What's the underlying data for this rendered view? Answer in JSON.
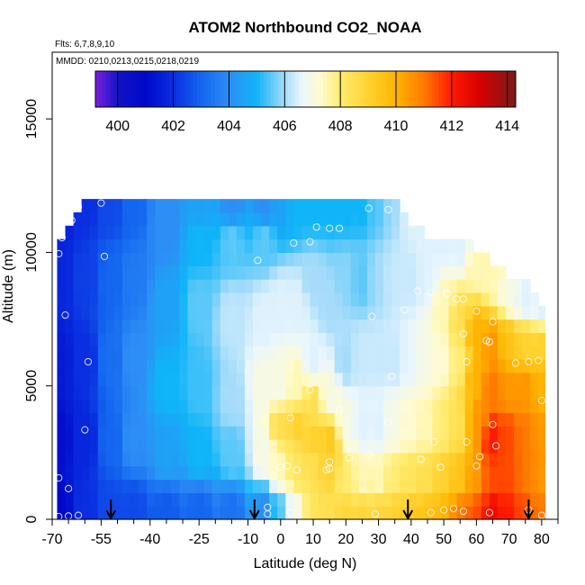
{
  "chart_data": {
    "type": "heatmap",
    "title": "ATOM2 Northbound CO2_NOAA",
    "subtitle_flights": "Flts: 6,7,8,9,10",
    "subtitle_dates": "MMDD: 0210,0213,0215,0218,0219",
    "xlabel": "Latitude (deg N)",
    "ylabel": "Altitude (m)",
    "xlim": [
      -70,
      85
    ],
    "ylim": [
      0,
      17500
    ],
    "x_ticks": [
      -70,
      -55,
      -40,
      -25,
      -10,
      0,
      10,
      20,
      30,
      40,
      50,
      60,
      70,
      80
    ],
    "x_tick_labels": [
      "-70",
      "-55",
      "-40",
      "-25",
      "-10",
      "0",
      "10",
      "20",
      "30",
      "40",
      "50",
      "60",
      "70",
      "80"
    ],
    "x_minor_ticks": [
      -65,
      -60,
      -50,
      -45,
      -35,
      -30,
      -20,
      -15,
      -5,
      5,
      15,
      25,
      35,
      45,
      55,
      65,
      75,
      85
    ],
    "y_ticks": [
      0,
      5000,
      10000,
      15000
    ],
    "y_tick_labels": [
      "0",
      "5000",
      "10000",
      "15000"
    ],
    "colorbar": {
      "range": [
        399.2,
        414.3
      ],
      "ticks": [
        400,
        402,
        404,
        406,
        408,
        410,
        412,
        414
      ],
      "tick_labels": [
        "400",
        "402",
        "404",
        "406",
        "408",
        "410",
        "412",
        "414"
      ],
      "colors": [
        {
          "value": 399.2,
          "color": "#7a1fe0"
        },
        {
          "value": 400.0,
          "color": "#1414c8"
        },
        {
          "value": 401.0,
          "color": "#0008c8"
        },
        {
          "value": 402.0,
          "color": "#0a2ee0"
        },
        {
          "value": 403.0,
          "color": "#1466f0"
        },
        {
          "value": 404.0,
          "color": "#2d8ef5"
        },
        {
          "value": 405.0,
          "color": "#10b4f8"
        },
        {
          "value": 406.0,
          "color": "#a6dcfa"
        },
        {
          "value": 406.6,
          "color": "#eaf6fd"
        },
        {
          "value": 407.3,
          "color": "#fffbd0"
        },
        {
          "value": 408.0,
          "color": "#ffec70"
        },
        {
          "value": 409.0,
          "color": "#ffd230"
        },
        {
          "value": 410.0,
          "color": "#ffb400"
        },
        {
          "value": 411.0,
          "color": "#ff7a00"
        },
        {
          "value": 412.0,
          "color": "#ff1a00"
        },
        {
          "value": 413.0,
          "color": "#d80000"
        },
        {
          "value": 414.3,
          "color": "#7a1a1a"
        }
      ]
    },
    "grid": {
      "lat_start": -68.5,
      "lat_end": 81.0,
      "lat_step": 2.5,
      "alt_start": 0,
      "alt_step": 500,
      "column_tops_m": [
        {
          "lat_max": -65,
          "top": 10500
        },
        {
          "lat_max": -63,
          "top": 11000
        },
        {
          "lat_max": -60,
          "top": 11500
        },
        {
          "lat_max": 37,
          "top": 12000
        },
        {
          "lat_max": 40,
          "top": 11500
        },
        {
          "lat_max": 45,
          "top": 11000
        },
        {
          "lat_max": 58,
          "top": 10500
        },
        {
          "lat_max": 63,
          "top": 10000
        },
        {
          "lat_max": 69,
          "top": 9500
        },
        {
          "lat_max": 76,
          "top": 9000
        },
        {
          "lat_max": 79,
          "top": 8500
        },
        {
          "lat_max": 99,
          "top": 8000
        }
      ]
    },
    "series": [
      {
        "name": "CO2 field anchors (lat, alt m, ppm)",
        "points": [
          [
            -68,
            200,
            401.0
          ],
          [
            -68,
            3000,
            401.2
          ],
          [
            -68,
            6000,
            401.5
          ],
          [
            -68,
            9000,
            401.8
          ],
          [
            -68,
            11500,
            401.5
          ],
          [
            -60,
            200,
            402.0
          ],
          [
            -60,
            3000,
            401.8
          ],
          [
            -60,
            6000,
            402.0
          ],
          [
            -60,
            9000,
            402.3
          ],
          [
            -60,
            11800,
            402.0
          ],
          [
            -52,
            300,
            402.5
          ],
          [
            -52,
            3000,
            403.0
          ],
          [
            -52,
            6000,
            403.2
          ],
          [
            -52,
            9000,
            403.0
          ],
          [
            -52,
            11800,
            402.5
          ],
          [
            -45,
            200,
            402.5
          ],
          [
            -45,
            3000,
            404.0
          ],
          [
            -45,
            6000,
            404.0
          ],
          [
            -45,
            9000,
            403.5
          ],
          [
            -45,
            11800,
            403.0
          ],
          [
            -35,
            200,
            402.8
          ],
          [
            -35,
            2500,
            404.5
          ],
          [
            -35,
            5000,
            405.0
          ],
          [
            -35,
            8000,
            404.5
          ],
          [
            -35,
            11000,
            404.0
          ],
          [
            -35,
            11800,
            404.0
          ],
          [
            -25,
            200,
            403.0
          ],
          [
            -25,
            2500,
            405.0
          ],
          [
            -25,
            5000,
            405.3
          ],
          [
            -25,
            8000,
            405.5
          ],
          [
            -25,
            10500,
            405.0
          ],
          [
            -25,
            11800,
            404.5
          ],
          [
            -15,
            200,
            403.3
          ],
          [
            -15,
            2500,
            405.5
          ],
          [
            -15,
            4500,
            406.0
          ],
          [
            -15,
            7500,
            406.2
          ],
          [
            -15,
            10500,
            405.5
          ],
          [
            -15,
            11800,
            404.0
          ],
          [
            -5,
            200,
            404.0
          ],
          [
            -5,
            2500,
            407.0
          ],
          [
            -5,
            5000,
            407.0
          ],
          [
            -5,
            7500,
            406.5
          ],
          [
            -5,
            10500,
            405.5
          ],
          [
            -5,
            11800,
            404.0
          ],
          [
            0,
            200,
            405.5
          ],
          [
            0,
            2000,
            407.5
          ],
          [
            0,
            3500,
            408.5
          ],
          [
            0,
            5000,
            407.0
          ],
          [
            0,
            8000,
            406.5
          ],
          [
            0,
            11800,
            404.5
          ],
          [
            5,
            200,
            407.0
          ],
          [
            5,
            2000,
            408.3
          ],
          [
            5,
            3500,
            409.0
          ],
          [
            5,
            5000,
            407.5
          ],
          [
            5,
            8000,
            406.5
          ],
          [
            5,
            11800,
            405.0
          ],
          [
            10,
            200,
            408.3
          ],
          [
            10,
            2000,
            408.5
          ],
          [
            10,
            3000,
            409.0
          ],
          [
            10,
            4300,
            408.5
          ],
          [
            10,
            6000,
            406.5
          ],
          [
            10,
            9000,
            406.0
          ],
          [
            10,
            11800,
            405.0
          ],
          [
            15,
            200,
            408.5
          ],
          [
            15,
            2000,
            409.0
          ],
          [
            15,
            3000,
            409.3
          ],
          [
            15,
            4500,
            407.0
          ],
          [
            15,
            8000,
            406.0
          ],
          [
            15,
            11800,
            405.0
          ],
          [
            20,
            200,
            408.8
          ],
          [
            20,
            1500,
            408.0
          ],
          [
            20,
            3500,
            407.0
          ],
          [
            20,
            6000,
            406.0
          ],
          [
            20,
            9000,
            405.8
          ],
          [
            20,
            11800,
            405.0
          ],
          [
            25,
            200,
            408.8
          ],
          [
            25,
            1500,
            407.5
          ],
          [
            25,
            3500,
            406.5
          ],
          [
            25,
            6000,
            406.3
          ],
          [
            25,
            9000,
            405.5
          ],
          [
            25,
            11800,
            405.0
          ],
          [
            30,
            200,
            408.8
          ],
          [
            30,
            1500,
            407.5
          ],
          [
            30,
            3500,
            406.5
          ],
          [
            30,
            6000,
            406.3
          ],
          [
            30,
            9000,
            406.0
          ],
          [
            30,
            11800,
            405.5
          ],
          [
            35,
            200,
            409.0
          ],
          [
            35,
            1500,
            408.0
          ],
          [
            35,
            3500,
            407.0
          ],
          [
            35,
            6000,
            406.3
          ],
          [
            35,
            9000,
            406.3
          ],
          [
            35,
            11800,
            406.0
          ],
          [
            40,
            200,
            409.3
          ],
          [
            40,
            1500,
            408.3
          ],
          [
            40,
            3500,
            407.3
          ],
          [
            40,
            6000,
            406.6
          ],
          [
            40,
            9000,
            406.3
          ],
          [
            40,
            11500,
            406.5
          ],
          [
            45,
            200,
            409.5
          ],
          [
            45,
            1500,
            408.5
          ],
          [
            45,
            3500,
            407.5
          ],
          [
            45,
            6000,
            407.0
          ],
          [
            45,
            9000,
            406.5
          ],
          [
            45,
            10800,
            406.5
          ],
          [
            50,
            200,
            410.0
          ],
          [
            50,
            1500,
            409.0
          ],
          [
            50,
            3500,
            408.0
          ],
          [
            50,
            6000,
            407.3
          ],
          [
            50,
            8000,
            407.5
          ],
          [
            50,
            10500,
            406.5
          ],
          [
            55,
            200,
            411.0
          ],
          [
            55,
            1500,
            409.5
          ],
          [
            55,
            3500,
            408.5
          ],
          [
            55,
            6000,
            408.0
          ],
          [
            55,
            7500,
            408.5
          ],
          [
            55,
            10300,
            406.5
          ],
          [
            60,
            200,
            411.5
          ],
          [
            60,
            1500,
            410.5
          ],
          [
            60,
            3500,
            410.5
          ],
          [
            60,
            5500,
            410.0
          ],
          [
            60,
            7000,
            410.0
          ],
          [
            60,
            9500,
            407.5
          ],
          [
            65,
            200,
            412.5
          ],
          [
            65,
            1500,
            411.5
          ],
          [
            65,
            3000,
            412.0
          ],
          [
            65,
            5000,
            411.0
          ],
          [
            65,
            6500,
            410.5
          ],
          [
            65,
            9000,
            407.5
          ],
          [
            70,
            200,
            412.0
          ],
          [
            70,
            1500,
            411.5
          ],
          [
            70,
            3000,
            411.5
          ],
          [
            70,
            5000,
            410.5
          ],
          [
            70,
            6500,
            409.5
          ],
          [
            70,
            8500,
            407.0
          ],
          [
            75,
            200,
            411.5
          ],
          [
            75,
            1500,
            411.0
          ],
          [
            75,
            3000,
            411.0
          ],
          [
            75,
            5000,
            410.5
          ],
          [
            75,
            6500,
            409.0
          ],
          [
            75,
            8200,
            406.5
          ],
          [
            80,
            200,
            411.0
          ],
          [
            80,
            1500,
            410.5
          ],
          [
            80,
            3000,
            410.5
          ],
          [
            80,
            5000,
            410.0
          ],
          [
            80,
            6500,
            409.0
          ],
          [
            80,
            8000,
            406.5
          ]
        ]
      },
      {
        "name": "Sample locations (lat, alt m)",
        "points": [
          [
            -68,
            100
          ],
          [
            -65,
            120
          ],
          [
            -62,
            150
          ],
          [
            -68,
            1550
          ],
          [
            -65,
            1150
          ],
          [
            -60,
            3350
          ],
          [
            -59,
            5900
          ],
          [
            -66,
            7650
          ],
          [
            -68,
            9950
          ],
          [
            -67,
            10550
          ],
          [
            -64,
            11200
          ],
          [
            -62,
            11700
          ],
          [
            -55,
            11850
          ],
          [
            -54,
            9850
          ],
          [
            -7,
            9700
          ],
          [
            4,
            10350
          ],
          [
            9,
            10400
          ],
          [
            11,
            10950
          ],
          [
            15,
            10900
          ],
          [
            18,
            10900
          ],
          [
            27,
            11650
          ],
          [
            33,
            11600
          ],
          [
            38,
            11750
          ],
          [
            42,
            8550
          ],
          [
            46,
            8500
          ],
          [
            51,
            8450
          ],
          [
            54,
            8250
          ],
          [
            56,
            8250
          ],
          [
            60,
            7800
          ],
          [
            28,
            7600
          ],
          [
            38,
            7850
          ],
          [
            65,
            7400
          ],
          [
            56,
            6950
          ],
          [
            63,
            6700
          ],
          [
            64,
            6650
          ],
          [
            57,
            5900
          ],
          [
            72,
            5850
          ],
          [
            76,
            5900
          ],
          [
            79,
            5950
          ],
          [
            34,
            5350
          ],
          [
            9,
            4850
          ],
          [
            3,
            3800
          ],
          [
            18,
            4100
          ],
          [
            33,
            3600
          ],
          [
            80,
            4450
          ],
          [
            65,
            3550
          ],
          [
            66,
            2750
          ],
          [
            47,
            2900
          ],
          [
            57,
            2900
          ],
          [
            61,
            2350
          ],
          [
            15,
            2150
          ],
          [
            21,
            2300
          ],
          [
            15,
            1900
          ],
          [
            14,
            1850
          ],
          [
            27,
            2400
          ],
          [
            43,
            2250
          ],
          [
            49,
            1950
          ],
          [
            60,
            2000
          ],
          [
            0,
            1950
          ],
          [
            2,
            2000
          ],
          [
            5,
            1850
          ],
          [
            -2,
            1600
          ],
          [
            3,
            250
          ],
          [
            -4,
            450
          ],
          [
            -4,
            200
          ],
          [
            29,
            200
          ],
          [
            46,
            250
          ],
          [
            50,
            350
          ],
          [
            53,
            400
          ],
          [
            56,
            300
          ],
          [
            64,
            250
          ],
          [
            76,
            350
          ],
          [
            80,
            150
          ]
        ]
      },
      {
        "name": "Arrow markers (lat)",
        "points": [
          -52,
          -8,
          39,
          76
        ]
      }
    ]
  }
}
